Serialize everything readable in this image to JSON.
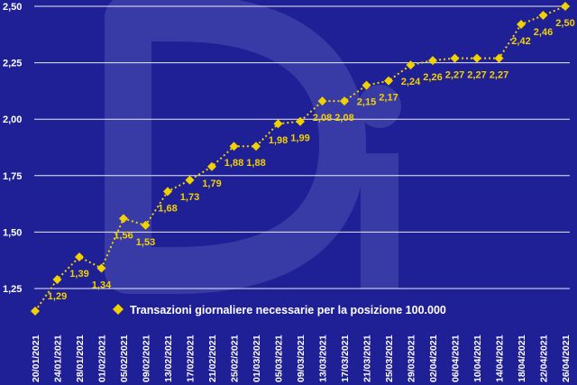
{
  "colors": {
    "background": "#1f1f96",
    "series": "#f2d100",
    "grid": "#ffffff",
    "watermark": "#4a4cb0"
  },
  "watermark": {
    "text": "Di"
  },
  "chart_data": {
    "type": "line",
    "title": "",
    "xlabel": "",
    "ylabel": "",
    "ylim": [
      1.15,
      2.5
    ],
    "yticks": [
      "1,25",
      "1,50",
      "1,75",
      "2,00",
      "2,25",
      "2,50"
    ],
    "ytick_values": [
      1.25,
      1.5,
      1.75,
      2.0,
      2.25,
      2.5
    ],
    "grid": true,
    "legend_position": "bottom-right",
    "categories": [
      "20/01/2021",
      "24/01/2021",
      "28/01/2021",
      "01/02/2021",
      "05/02/2021",
      "09/02/2021",
      "13/02/2021",
      "17/02/2021",
      "21/02/2021",
      "25/02/2021",
      "01/03/2021",
      "05/03/2021",
      "09/03/2021",
      "13/03/2021",
      "17/03/2021",
      "21/03/2021",
      "25/03/2021",
      "29/03/2021",
      "02/04/2021",
      "06/04/2021",
      "10/04/2021",
      "14/04/2021",
      "18/04/2021",
      "22/04/2021",
      "26/04/2021"
    ],
    "series": [
      {
        "name": "Transazioni giornaliere necessarie per la posizione 100.000",
        "values": [
          1.15,
          1.29,
          1.39,
          1.34,
          1.56,
          1.53,
          1.68,
          1.73,
          1.79,
          1.88,
          1.88,
          1.98,
          1.99,
          2.08,
          2.08,
          2.15,
          2.17,
          2.24,
          2.26,
          2.27,
          2.27,
          2.27,
          2.42,
          2.46,
          2.5
        ]
      }
    ],
    "data_labels": [
      "",
      "1,29",
      "1,39",
      "1,34",
      "1,56",
      "1,53",
      "1,68",
      "1,73",
      "1,79",
      "1,88",
      "1,88",
      "1,98",
      "1,99",
      "2,08",
      "2,08",
      "2,15",
      "2,17",
      "2,24",
      "2,26",
      "2,27",
      "2,27",
      "2,27",
      "2,42",
      "2,46",
      "2,50"
    ]
  }
}
